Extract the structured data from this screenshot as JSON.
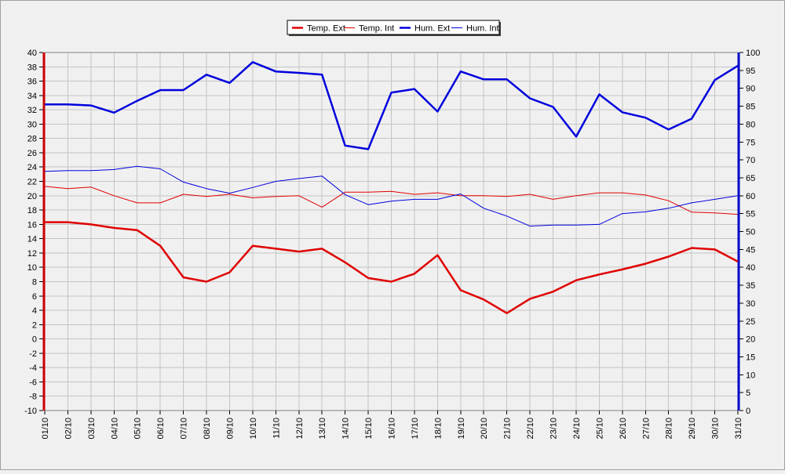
{
  "chart_data": {
    "type": "line",
    "categories": [
      "01/10",
      "02/10",
      "03/10",
      "04/10",
      "05/10",
      "06/10",
      "07/10",
      "08/10",
      "09/10",
      "10/10",
      "11/10",
      "12/10",
      "13/10",
      "14/10",
      "15/10",
      "16/10",
      "17/10",
      "18/10",
      "19/10",
      "20/10",
      "21/10",
      "22/10",
      "23/10",
      "24/10",
      "25/10",
      "26/10",
      "27/10",
      "28/10",
      "29/10",
      "30/10",
      "31/10"
    ],
    "y_left": {
      "min": -10,
      "max": 40,
      "step": 2,
      "color": "#cc0000"
    },
    "y_right": {
      "min": 0,
      "max": 100,
      "step": 5,
      "color": "#0000cc"
    },
    "grid": true,
    "legend_placement": "top-center",
    "series": [
      {
        "name": "Temp. Ext",
        "axis": "left",
        "color": "#e00000",
        "width": 2.5,
        "values": [
          16.3,
          16.3,
          16.0,
          15.5,
          15.2,
          13.0,
          8.6,
          8.0,
          9.3,
          13.0,
          12.6,
          12.2,
          12.6,
          10.7,
          8.5,
          8.0,
          9.1,
          11.7,
          6.8,
          5.5,
          3.6,
          5.6,
          6.6,
          8.2,
          9.0,
          9.7,
          10.5,
          11.5,
          12.7,
          12.5,
          10.8
        ]
      },
      {
        "name": "Temp. Int",
        "axis": "left",
        "color": "#e00000",
        "width": 1,
        "values": [
          21.3,
          21.0,
          21.2,
          20.0,
          19.0,
          19.0,
          20.2,
          19.9,
          20.2,
          19.7,
          19.9,
          20.0,
          18.4,
          20.5,
          20.5,
          20.6,
          20.2,
          20.4,
          20.0,
          20.0,
          19.9,
          20.2,
          19.5,
          20.0,
          20.4,
          20.4,
          20.1,
          19.3,
          17.7,
          17.6,
          17.4
        ]
      },
      {
        "name": "Hum. Ext",
        "axis": "right",
        "color": "#0000dd",
        "width": 2.5,
        "values": [
          85.5,
          85.5,
          85.2,
          83.2,
          86.5,
          89.5,
          89.5,
          93.8,
          91.5,
          97.3,
          94.7,
          94.3,
          93.8,
          74.0,
          73.0,
          88.8,
          89.8,
          83.5,
          94.7,
          92.5,
          92.5,
          87.2,
          84.8,
          76.5,
          88.3,
          83.3,
          81.8,
          78.5,
          81.5,
          92.3,
          96.3
        ]
      },
      {
        "name": "Hum. Int",
        "axis": "right",
        "color": "#0000dd",
        "width": 1,
        "values": [
          66.8,
          67.0,
          67.0,
          67.3,
          68.2,
          67.5,
          63.8,
          62.0,
          60.7,
          62.3,
          64.0,
          64.8,
          65.5,
          60.3,
          57.5,
          58.5,
          59.0,
          59.0,
          60.5,
          56.5,
          54.3,
          51.5,
          51.8,
          51.8,
          52.0,
          55.0,
          55.5,
          56.5,
          58.0,
          59.0,
          60.0
        ]
      }
    ]
  }
}
